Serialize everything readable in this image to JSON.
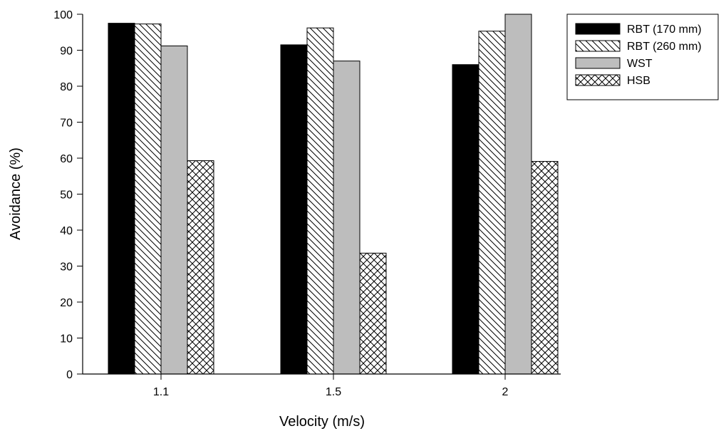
{
  "chart_data": {
    "type": "bar",
    "title": "",
    "xlabel": "Velocity (m/s)",
    "ylabel": "Avoidance (%)",
    "ylim": [
      0,
      100
    ],
    "yticks": [
      0,
      10,
      20,
      30,
      40,
      50,
      60,
      70,
      80,
      90,
      100
    ],
    "categories": [
      "1.1",
      "1.5",
      "2"
    ],
    "series": [
      {
        "name": "RBT (170 mm)",
        "values": [
          97.5,
          91.5,
          86.0
        ],
        "fill": "solid-black",
        "color": "#000000"
      },
      {
        "name": "RBT (260 mm)",
        "values": [
          97.3,
          96.2,
          95.3
        ],
        "fill": "diagonal-hatch",
        "color": "#000000"
      },
      {
        "name": "WST",
        "values": [
          91.2,
          87.0,
          100.0
        ],
        "fill": "solid-gray",
        "color": "#bdbdbd"
      },
      {
        "name": "HSB",
        "values": [
          59.3,
          33.6,
          59.1
        ],
        "fill": "cross-hatch",
        "color": "#000000"
      }
    ],
    "grid": false,
    "legend_position": "top-right"
  }
}
